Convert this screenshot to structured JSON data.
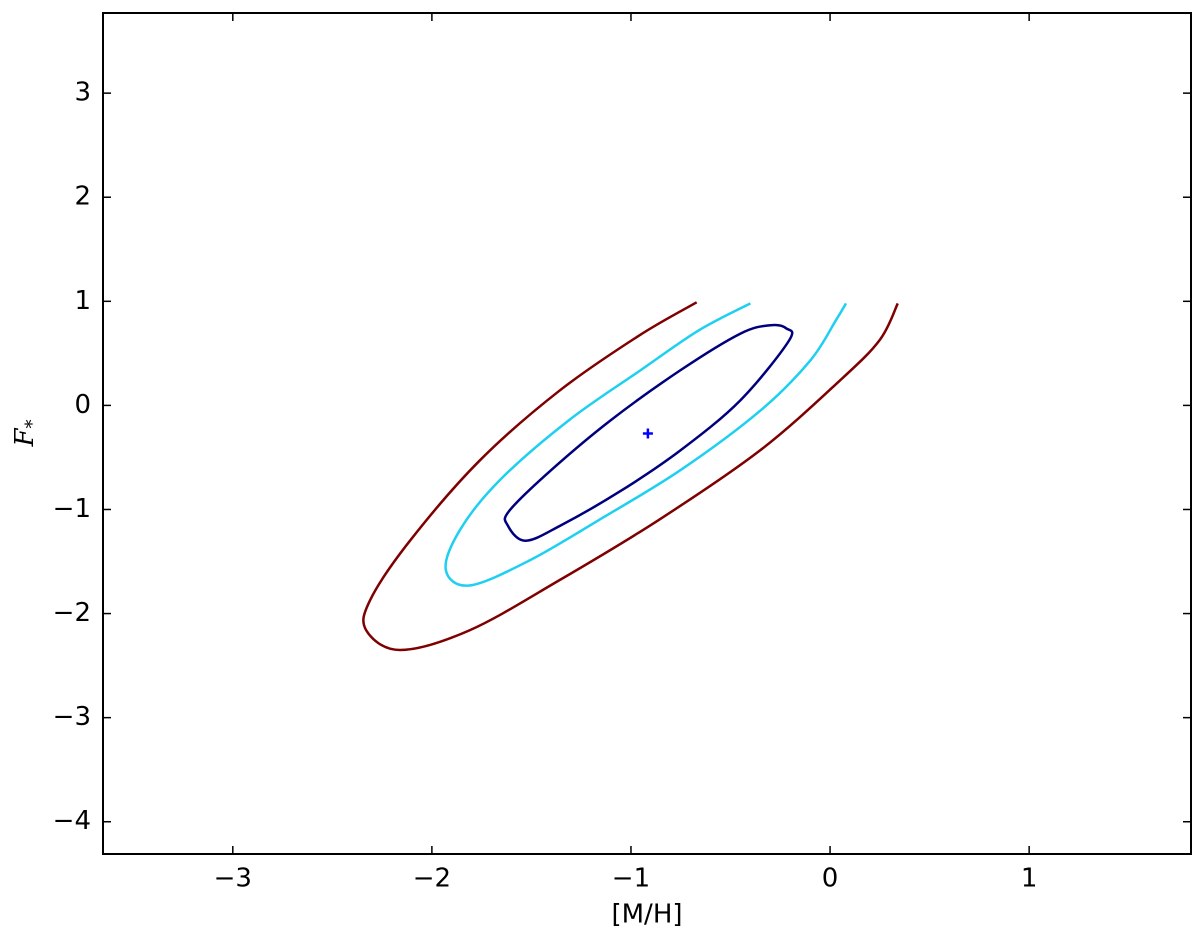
{
  "chart_data": {
    "type": "contour",
    "xlabel": "[M/H]",
    "ylabel": {
      "base": "F",
      "sub": "*"
    },
    "xlim": [
      -3.652,
      1.813
    ],
    "ylim": [
      -4.31,
      3.77
    ],
    "xticks": [
      {
        "value": -3,
        "label": "−3"
      },
      {
        "value": -2,
        "label": "−2"
      },
      {
        "value": -1,
        "label": "−1"
      },
      0,
      1
    ],
    "yticks": [
      {
        "value": -4,
        "label": "−4"
      },
      {
        "value": -3,
        "label": "−3"
      },
      {
        "value": -2,
        "label": "−2"
      },
      {
        "value": -1,
        "label": "−1"
      },
      0,
      1,
      2,
      3
    ],
    "series": [
      {
        "color": "#7f0000",
        "closed": false,
        "x": [
          -0.67,
          -0.96,
          -1.36,
          -1.76,
          -2.11,
          -2.31,
          -2.33,
          -2.16,
          -1.81,
          -1.36,
          -0.86,
          -0.35,
          0.05,
          0.25,
          0.34
        ],
        "y": [
          0.99,
          0.67,
          0.14,
          -0.53,
          -1.3,
          -1.87,
          -2.16,
          -2.35,
          -2.16,
          -1.68,
          -1.1,
          -0.43,
          0.24,
          0.63,
          0.98
        ]
      },
      {
        "color": "#1ed0f0",
        "closed": false,
        "x": [
          -0.4,
          -0.66,
          -0.95,
          -1.31,
          -1.66,
          -1.86,
          -1.93,
          -1.81,
          -1.51,
          -1.16,
          -0.75,
          -0.35,
          -0.1,
          0.03,
          0.08
        ],
        "y": [
          0.98,
          0.72,
          0.34,
          -0.14,
          -0.72,
          -1.2,
          -1.58,
          -1.73,
          -1.49,
          -1.1,
          -0.62,
          -0.05,
          0.43,
          0.82,
          0.98
        ]
      },
      {
        "color": "#00007f",
        "closed": true,
        "x": [
          -0.207,
          -0.45,
          -0.75,
          -1.05,
          -1.35,
          -1.53,
          -1.62,
          -1.61,
          -1.4,
          -1.1,
          -0.75,
          -0.45,
          -0.3,
          -0.22
        ],
        "y": [
          0.62,
          0.05,
          -0.43,
          -0.82,
          -1.15,
          -1.3,
          -1.15,
          -1.01,
          -0.62,
          -0.14,
          0.34,
          0.69,
          0.77,
          0.74
        ]
      }
    ],
    "marker": {
      "x": -0.915,
      "y": -0.27,
      "color": "#0000ff"
    }
  }
}
